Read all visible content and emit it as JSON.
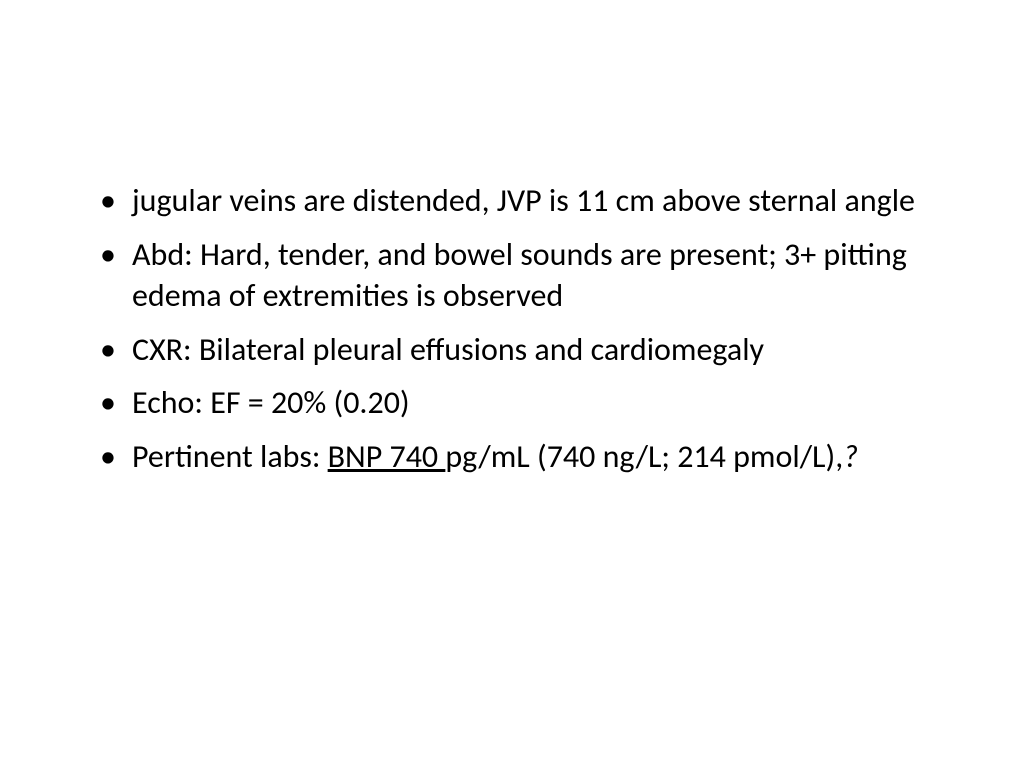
{
  "slide": {
    "background_color": "#ffffff",
    "text_color": "#000000",
    "font_family": "Calibri",
    "font_size_pt": 24,
    "bullets": [
      {
        "text": "jugular veins are distended, JVP is 11 cm above sternal angle"
      },
      {
        "text": "Abd: Hard, tender, and bowel sounds are present; 3+ pitting edema of extremities is observed"
      },
      {
        "text": "CXR: Bilateral pleural effusions and cardiomegaly"
      },
      {
        "text": "Echo: EF = 20% (0.20)"
      },
      {
        "prefix": "Pertinent labs: ",
        "underlined": "BNP 740 ",
        "suffix": "pg/mL (740 ng/L; 214 pmol/L),",
        "trailing_italic": "?"
      }
    ]
  }
}
